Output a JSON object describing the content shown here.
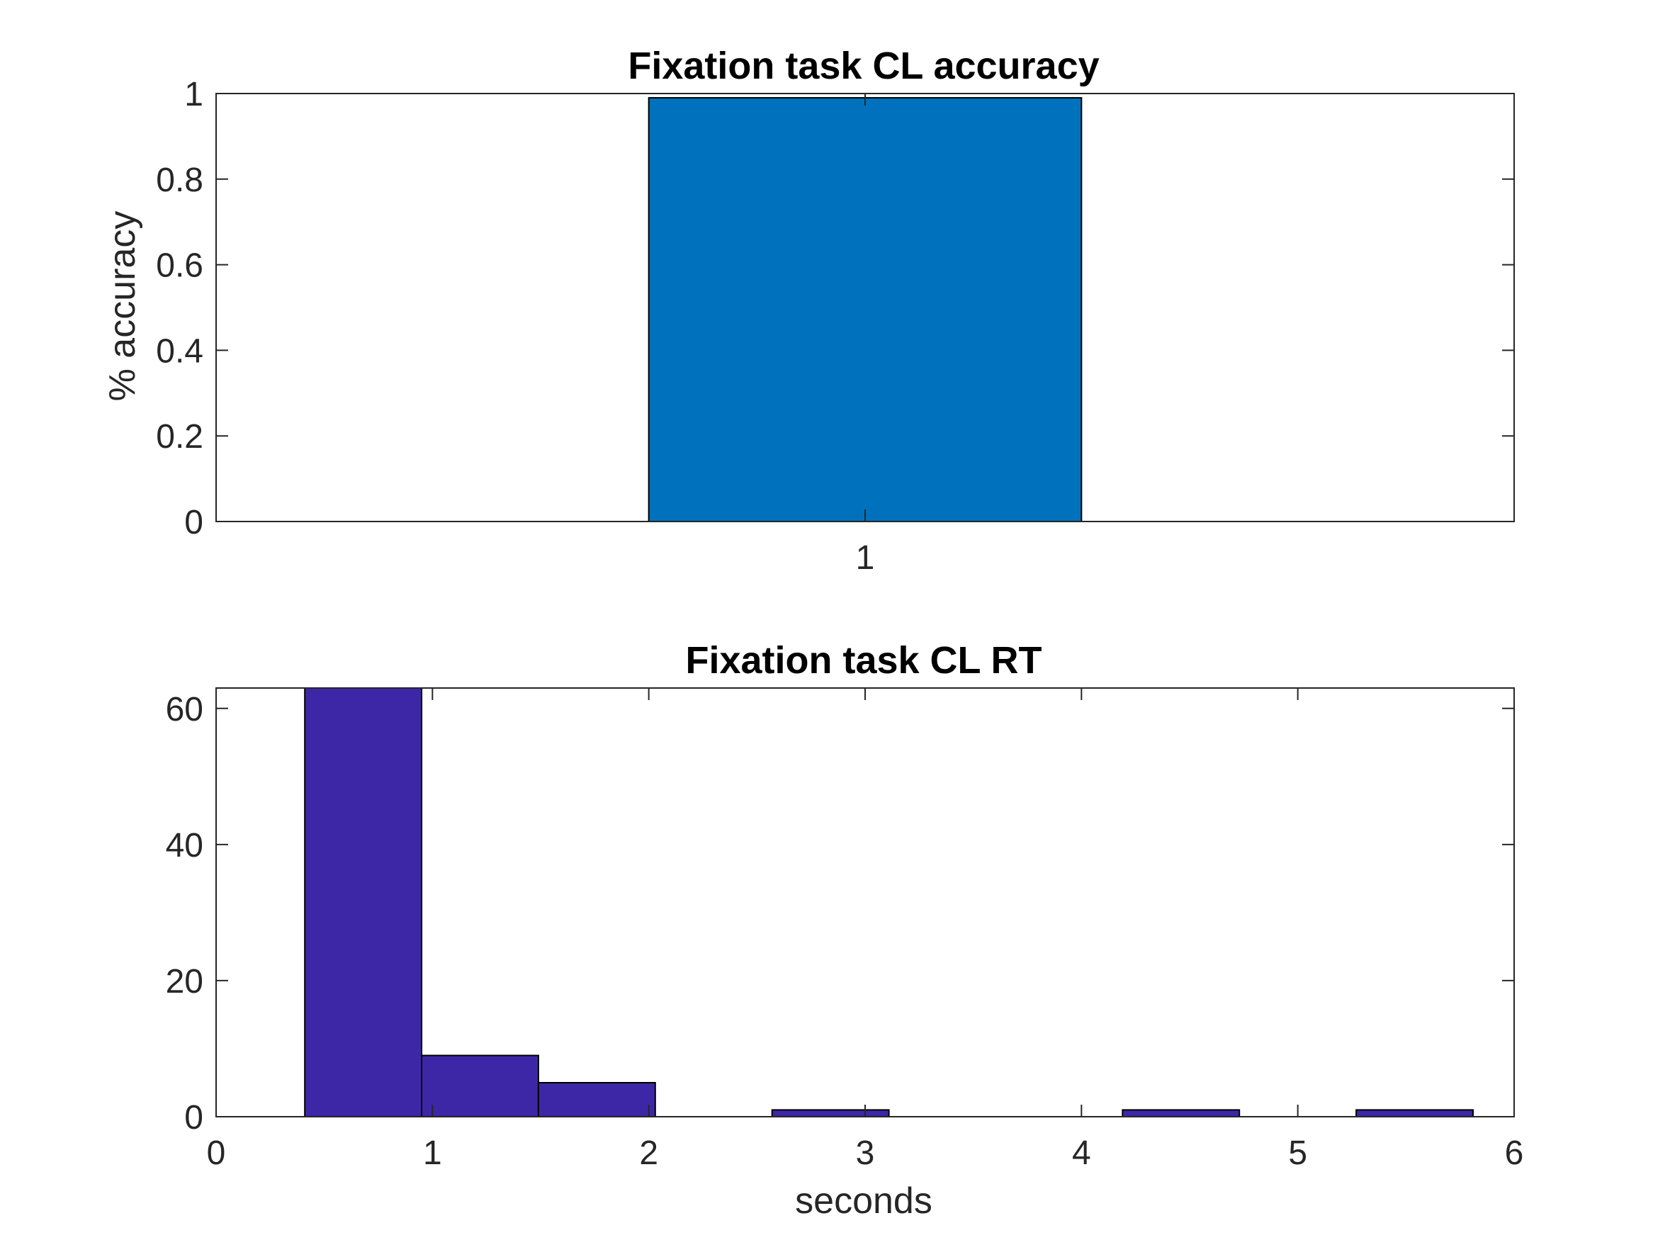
{
  "colors": {
    "accuracy_bar": "#0072BD",
    "histogram_bar": "#3E27A6",
    "axes": "#262626",
    "background": "#ffffff"
  },
  "chart_data": [
    {
      "type": "bar",
      "title": "Fixation task CL accuracy",
      "xlabel": "",
      "ylabel": "% accuracy",
      "categories": [
        "1"
      ],
      "values": [
        0.99
      ],
      "ylim": [
        0,
        1
      ],
      "yticks": [
        "0",
        "0.2",
        "0.4",
        "0.6",
        "0.8",
        "1"
      ],
      "grid": false
    },
    {
      "type": "bar",
      "subtype": "histogram",
      "title": "Fixation task CL RT",
      "xlabel": "seconds",
      "ylabel": "",
      "xlim": [
        0,
        6
      ],
      "ylim": [
        0,
        63
      ],
      "xticks": [
        "0",
        "1",
        "2",
        "3",
        "4",
        "5",
        "6"
      ],
      "yticks": [
        "0",
        "20",
        "40",
        "60"
      ],
      "bin_edges": [
        0.41,
        0.95,
        1.49,
        2.03,
        2.57,
        3.11,
        3.65,
        4.19,
        4.73,
        5.27,
        5.81
      ],
      "counts": [
        63,
        9,
        5,
        0,
        1,
        0,
        0,
        1,
        0,
        1
      ],
      "grid": false
    }
  ]
}
